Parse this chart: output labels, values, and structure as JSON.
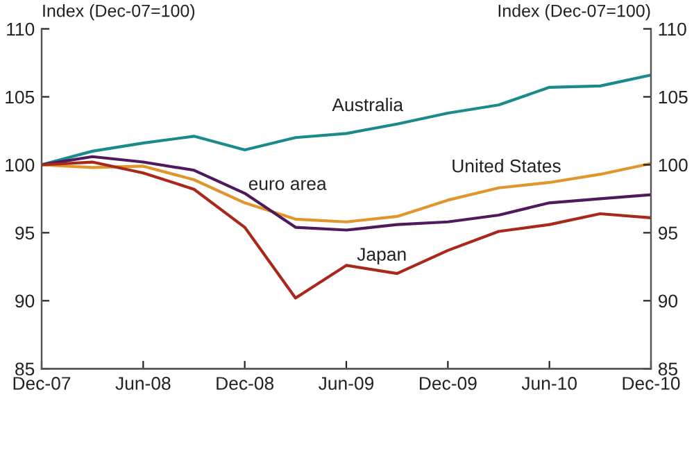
{
  "chart_data": {
    "type": "line",
    "ylabel": "Index (Dec-07=100)",
    "y2label": "Index (Dec-07=100)",
    "categories": [
      "Dec-07",
      null,
      "Jun-08",
      null,
      "Dec-08",
      null,
      "Jun-09",
      null,
      "Dec-09",
      null,
      "Jun-10",
      null,
      "Dec-10"
    ],
    "series": [
      {
        "name": "Australia",
        "color": "#1a8a8a",
        "values": [
          100,
          101.0,
          101.6,
          102.1,
          101.1,
          102.0,
          102.3,
          103.0,
          103.8,
          104.4,
          105.7,
          105.8,
          106.6
        ]
      },
      {
        "name": "United States",
        "color": "#e0962a",
        "values": [
          100,
          99.8,
          99.9,
          98.9,
          97.2,
          96.0,
          95.8,
          96.2,
          97.4,
          98.3,
          98.7,
          99.3,
          100.1
        ]
      },
      {
        "name": "euro area",
        "color": "#4f1a5c",
        "values": [
          100,
          100.6,
          100.2,
          99.6,
          97.9,
          95.4,
          95.2,
          95.6,
          95.8,
          96.3,
          97.2,
          97.5,
          97.8
        ]
      },
      {
        "name": "Japan",
        "color": "#a8281a",
        "values": [
          100,
          100.2,
          99.4,
          98.2,
          95.4,
          90.2,
          92.6,
          92.0,
          93.7,
          95.1,
          95.6,
          96.4,
          96.1
        ]
      }
    ],
    "ylim": [
      85,
      110
    ],
    "yticks": [
      85,
      90,
      95,
      100,
      105,
      110
    ],
    "y2lim": [
      85,
      110
    ],
    "y2ticks": [
      85,
      90,
      95,
      100,
      105,
      110
    ],
    "grid": false,
    "legend": false
  }
}
